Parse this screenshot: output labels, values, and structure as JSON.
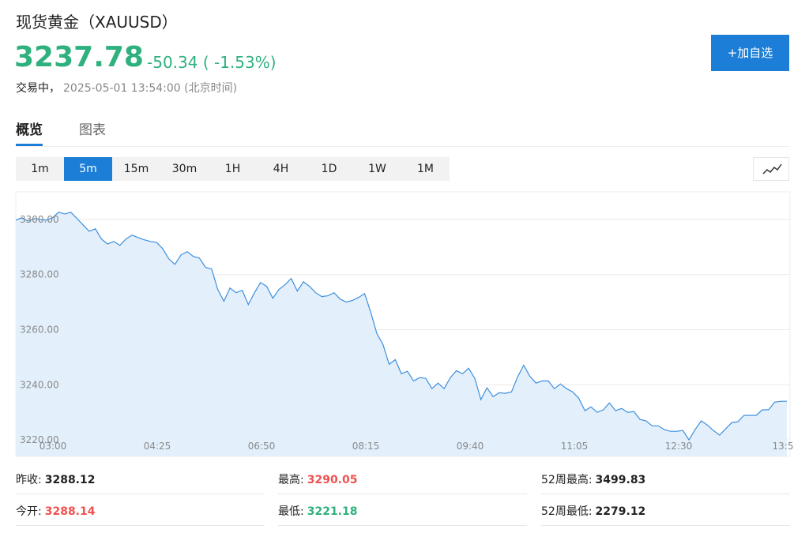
{
  "header": {
    "title": "现货黄金（XAUUSD）",
    "price": "3237.78",
    "change": "-50.34 ( -1.53%)",
    "status": "交易中，",
    "time": "2025-05-01 13:54:00 (北京时间)",
    "button": "+加自选"
  },
  "tabs": [
    "概览",
    "图表"
  ],
  "intervals": [
    "1m",
    "5m",
    "15m",
    "30m",
    "1H",
    "4H",
    "1D",
    "1W",
    "1M"
  ],
  "chart_data": {
    "type": "area",
    "color": "#3d8fdc",
    "fill": "#e3f0fc",
    "grid": true,
    "x_tick_labels": [
      "03:00",
      "04:25",
      "06:50",
      "08:15",
      "09:40",
      "11:05",
      "12:30",
      "13:5"
    ],
    "values": [
      3299.7,
      3300.6,
      3299.4,
      3300.3,
      3300.0,
      3299.7,
      3300.6,
      3302.6,
      3302.0,
      3302.6,
      3300.3,
      3298.0,
      3295.7,
      3296.6,
      3292.9,
      3291.1,
      3292.0,
      3290.6,
      3292.9,
      3294.3,
      3293.4,
      3292.6,
      3292.0,
      3291.7,
      3289.4,
      3285.7,
      3283.7,
      3287.1,
      3288.3,
      3286.6,
      3286.0,
      3282.6,
      3282.0,
      3274.6,
      3270.3,
      3275.1,
      3273.4,
      3274.3,
      3269.1,
      3273.4,
      3277.1,
      3275.7,
      3271.4,
      3274.6,
      3276.3,
      3278.6,
      3274.0,
      3277.4,
      3275.7,
      3273.4,
      3272.0,
      3272.3,
      3273.4,
      3271.1,
      3270.0,
      3270.6,
      3271.7,
      3273.1,
      3266.3,
      3258.6,
      3254.6,
      3247.4,
      3249.1,
      3244.0,
      3244.9,
      3241.4,
      3242.6,
      3242.3,
      3238.6,
      3240.6,
      3238.6,
      3242.6,
      3245.1,
      3244.0,
      3246.0,
      3242.3,
      3234.6,
      3238.9,
      3235.7,
      3237.1,
      3236.9,
      3237.4,
      3242.9,
      3247.1,
      3243.1,
      3240.6,
      3241.4,
      3241.4,
      3238.6,
      3240.3,
      3238.6,
      3237.4,
      3235.1,
      3230.6,
      3232.0,
      3230.0,
      3230.9,
      3233.4,
      3230.6,
      3231.4,
      3230.0,
      3230.3,
      3227.4,
      3226.9,
      3225.1,
      3225.1,
      3223.7,
      3223.1,
      3223.1,
      3223.4,
      3220.0,
      3223.7,
      3226.9,
      3225.4,
      3223.4,
      3221.7,
      3224.0,
      3226.3,
      3226.6,
      3228.9,
      3228.9,
      3228.9,
      3230.9,
      3230.9,
      3233.7,
      3234.0,
      3234.0
    ],
    "ylim": [
      3214,
      3310
    ],
    "yticks": [
      {
        "value": 3220,
        "label": "3220.00"
      },
      {
        "value": 3240,
        "label": "3240.00"
      },
      {
        "value": 3260,
        "label": "3260.00"
      },
      {
        "value": 3280,
        "label": "3280.00"
      },
      {
        "value": 3300,
        "label": "3300.00"
      }
    ]
  },
  "stats": [
    [
      {
        "label": "昨收:",
        "value": "3288.12"
      },
      {
        "label": "最高:",
        "value": "3290.05"
      },
      {
        "label": "52周最高:",
        "value": "3499.83"
      }
    ],
    [
      {
        "label": "今开:",
        "value": "3288.14"
      },
      {
        "label": "最低:",
        "value": "3221.18"
      },
      {
        "label": "52周最低:",
        "value": "2279.12"
      }
    ]
  ]
}
